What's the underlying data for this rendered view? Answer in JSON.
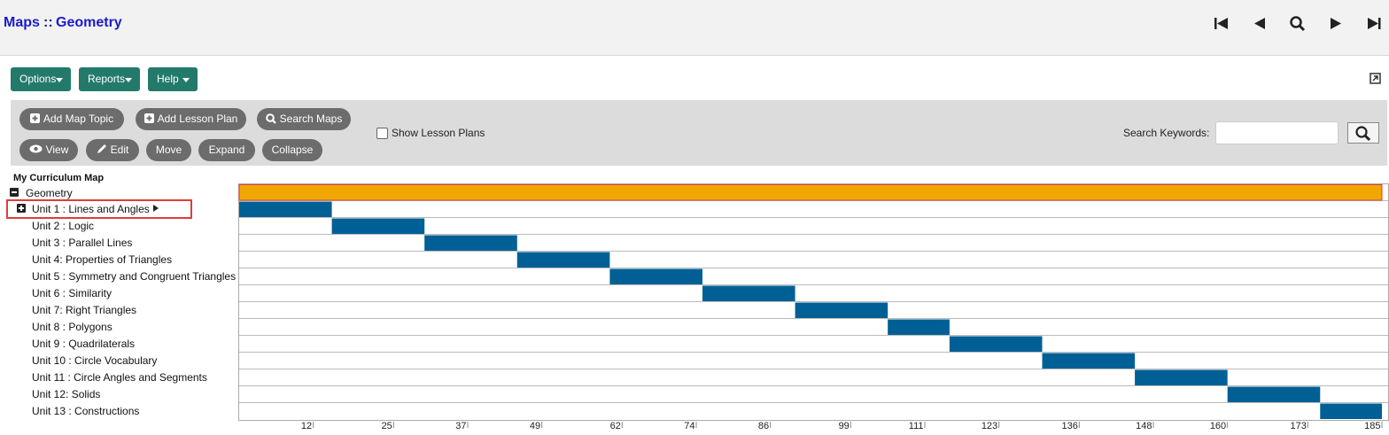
{
  "header": {
    "link": "Maps",
    "separator": "::",
    "title": "Geometry"
  },
  "menu": [
    "Options",
    "Reports",
    "Help"
  ],
  "toolbar": {
    "row1": [
      "Add Map Topic",
      "Add Lesson Plan",
      "Search Maps"
    ],
    "row2": [
      "View",
      "Edit",
      "Move",
      "Expand",
      "Collapse"
    ],
    "checkbox": "Show Lesson Plans",
    "search_label": "Search Keywords:"
  },
  "tree": {
    "heading": "My Curriculum Map",
    "root": "Geometry"
  },
  "chart_data": {
    "type": "gantt",
    "categories": [
      "Geometry",
      "Unit 1 : Lines and Angles",
      "Unit 2 : Logic",
      "Unit 3 : Parallel Lines",
      "Unit 4: Properties of Triangles",
      "Unit 5 : Symmetry and Congruent Triangles",
      "Unit 6 : Similarity",
      "Unit 7: Right Triangles",
      "Unit 8 : Polygons",
      "Unit 9 : Quadrilaterals",
      "Unit 10 : Circle Vocabulary",
      "Unit 11 : Circle Angles and Segments",
      "Unit 12: Solids",
      "Unit 13 : Constructions"
    ],
    "start": [
      0,
      0,
      15,
      30,
      45,
      60,
      75,
      90,
      105,
      115,
      130,
      145,
      160,
      175
    ],
    "end": [
      185,
      15,
      30,
      45,
      60,
      75,
      90,
      105,
      115,
      130,
      145,
      160,
      175,
      185
    ],
    "colors": [
      "#f0a800",
      "#006096"
    ],
    "xlim": [
      0,
      185
    ],
    "xticks": [
      12,
      25,
      37,
      49,
      62,
      74,
      86,
      99,
      111,
      123,
      136,
      148,
      160,
      173,
      185
    ]
  }
}
